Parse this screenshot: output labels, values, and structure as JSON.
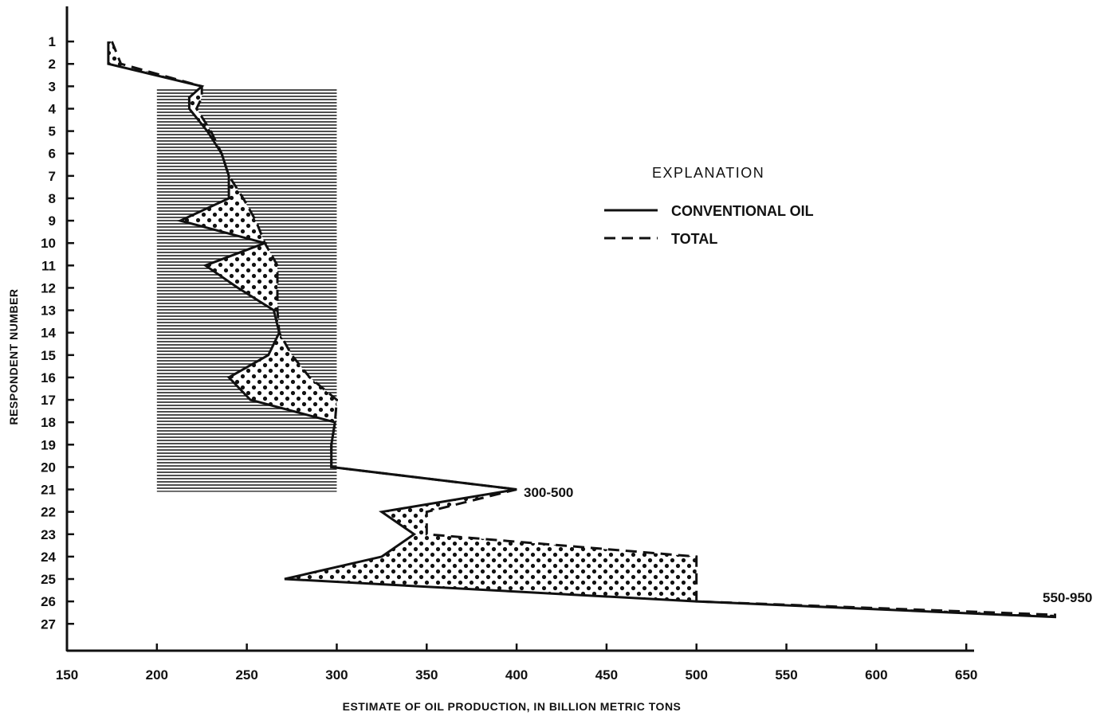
{
  "chart_data": {
    "type": "line",
    "orientation": "horizontal",
    "xlabel": "ESTIMATE OF OIL PRODUCTION, IN BILLION METRIC TONS",
    "ylabel": "RESPONDENT NUMBER",
    "xlim": [
      150,
      700
    ],
    "ylim": [
      0,
      28.2
    ],
    "x_ticks": [
      150,
      200,
      250,
      300,
      350,
      400,
      450,
      500,
      550,
      600,
      650
    ],
    "y_ticks": [
      1,
      2,
      3,
      4,
      5,
      6,
      7,
      8,
      9,
      10,
      11,
      12,
      13,
      14,
      15,
      16,
      17,
      18,
      19,
      20,
      21,
      22,
      23,
      24,
      25,
      26,
      27
    ],
    "legend": {
      "title": "EXPLANATION",
      "placement": "upper-right",
      "items": [
        {
          "label": "CONVENTIONAL OIL",
          "style": "solid"
        },
        {
          "label": "TOTAL",
          "style": "dashed"
        }
      ]
    },
    "shaded_band": {
      "x_range": [
        200,
        300
      ],
      "respondent_range": [
        3,
        21
      ],
      "pattern": "horizontal-lines"
    },
    "annotations": [
      {
        "text": "300-500",
        "x": 400,
        "respondent": 21
      },
      {
        "text": "550-950",
        "x": 700,
        "respondent": 26.7
      }
    ],
    "series": [
      {
        "name": "CONVENTIONAL OIL",
        "style": "solid",
        "respondents": [
          1,
          2,
          3,
          3.5,
          4,
          5,
          6,
          7,
          8,
          9,
          10,
          11,
          12,
          13,
          14,
          15,
          16,
          17,
          18,
          19,
          20,
          21,
          22,
          23,
          24,
          25,
          26,
          26.7
        ],
        "values": [
          173,
          173,
          225,
          218,
          218,
          228,
          236,
          240,
          240,
          213,
          260,
          227,
          245,
          265,
          268,
          262,
          240,
          252,
          299,
          297,
          297,
          400,
          325,
          343,
          325,
          271,
          500,
          700
        ]
      },
      {
        "name": "TOTAL",
        "style": "dashed",
        "respondents": [
          1,
          2,
          3,
          3.5,
          4,
          5,
          6,
          7,
          8,
          9,
          10,
          11,
          12,
          13,
          14,
          15,
          16,
          17,
          18,
          19,
          20,
          21,
          22,
          23,
          24,
          25,
          26,
          26.6
        ],
        "values": [
          175,
          180,
          225,
          225,
          222,
          230,
          236,
          240,
          248,
          255,
          260,
          267,
          267,
          267,
          268,
          275,
          285,
          300,
          299,
          297,
          297,
          400,
          350,
          350,
          500,
          500,
          500,
          700
        ]
      }
    ]
  }
}
